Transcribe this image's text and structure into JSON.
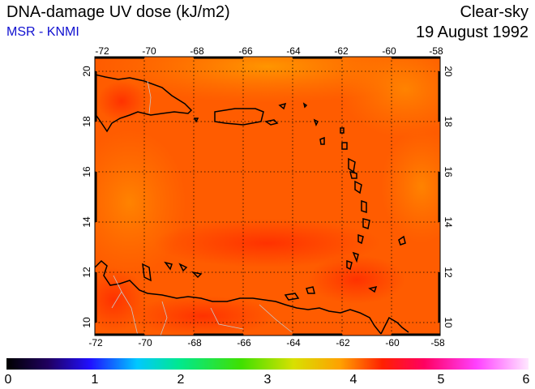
{
  "header": {
    "title": "DNA-damage UV dose (kJ/m2)",
    "source": "MSR - KNMI",
    "condition": "Clear-sky",
    "date": "19 August 1992"
  },
  "map": {
    "lon_ticks": [
      "-72",
      "-70",
      "-68",
      "-66",
      "-64",
      "-62",
      "-60",
      "-58"
    ],
    "lat_ticks": [
      "20",
      "18",
      "16",
      "14",
      "12",
      "10"
    ],
    "lon_range": [
      -72,
      -58
    ],
    "lat_range": [
      9.6,
      20.4
    ],
    "field_colors": {
      "base": "#ff5a00",
      "warm": "#ff8000",
      "hot": "#ff3000"
    }
  },
  "colorbar": {
    "labels": [
      "0",
      "1",
      "2",
      "3",
      "4",
      "5",
      "6"
    ],
    "range": [
      0,
      6
    ]
  }
}
